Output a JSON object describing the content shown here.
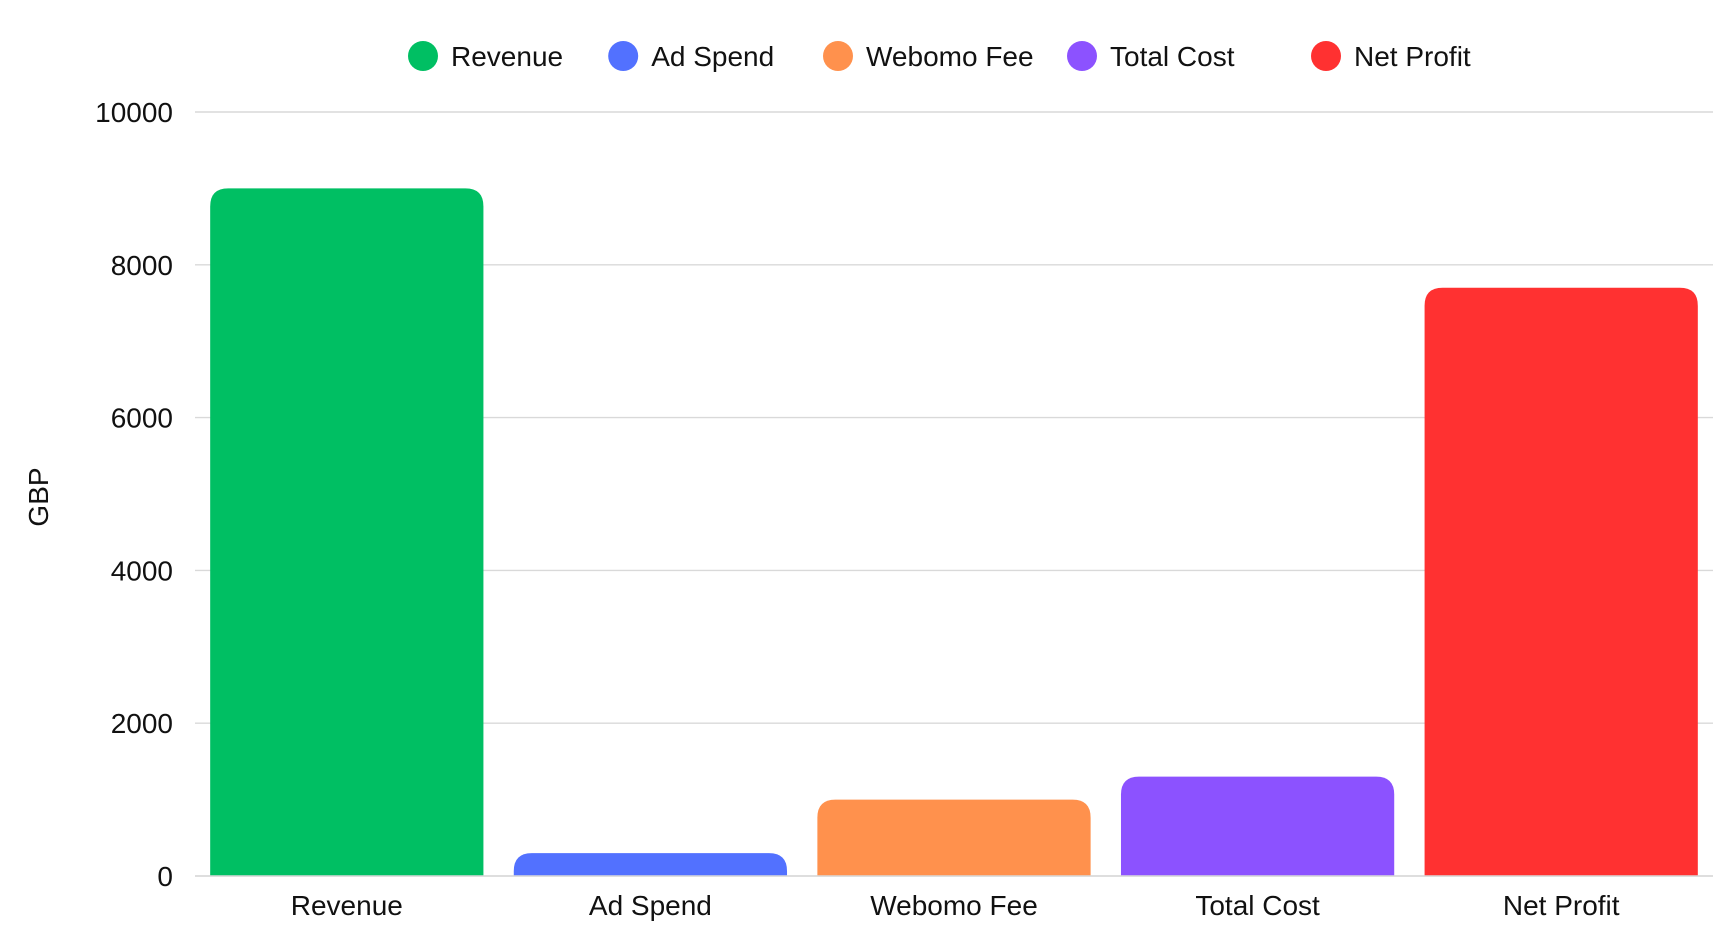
{
  "chart_data": {
    "type": "bar",
    "categories": [
      "Revenue",
      "Ad Spend",
      "Webomo Fee",
      "Total Cost",
      "Net Profit"
    ],
    "values": [
      9000,
      300,
      1000,
      1300,
      7700
    ],
    "colors": [
      "#00bf63",
      "#5271ff",
      "#ff914d",
      "#8c52ff",
      "#ff3131"
    ],
    "ylabel": "GBP",
    "ylim": [
      0,
      10000
    ],
    "yticks": [
      "0",
      "2000",
      "4000",
      "6000",
      "8000",
      "10000"
    ],
    "grid": true,
    "legend_position": "top-center",
    "legend": [
      {
        "label": "Revenue",
        "color": "#00bf63"
      },
      {
        "label": "Ad Spend",
        "color": "#5271ff"
      },
      {
        "label": "Webomo Fee",
        "color": "#ff914d"
      },
      {
        "label": "Total Cost",
        "color": "#8c52ff"
      },
      {
        "label": "Net Profit",
        "color": "#ff3131"
      }
    ]
  }
}
